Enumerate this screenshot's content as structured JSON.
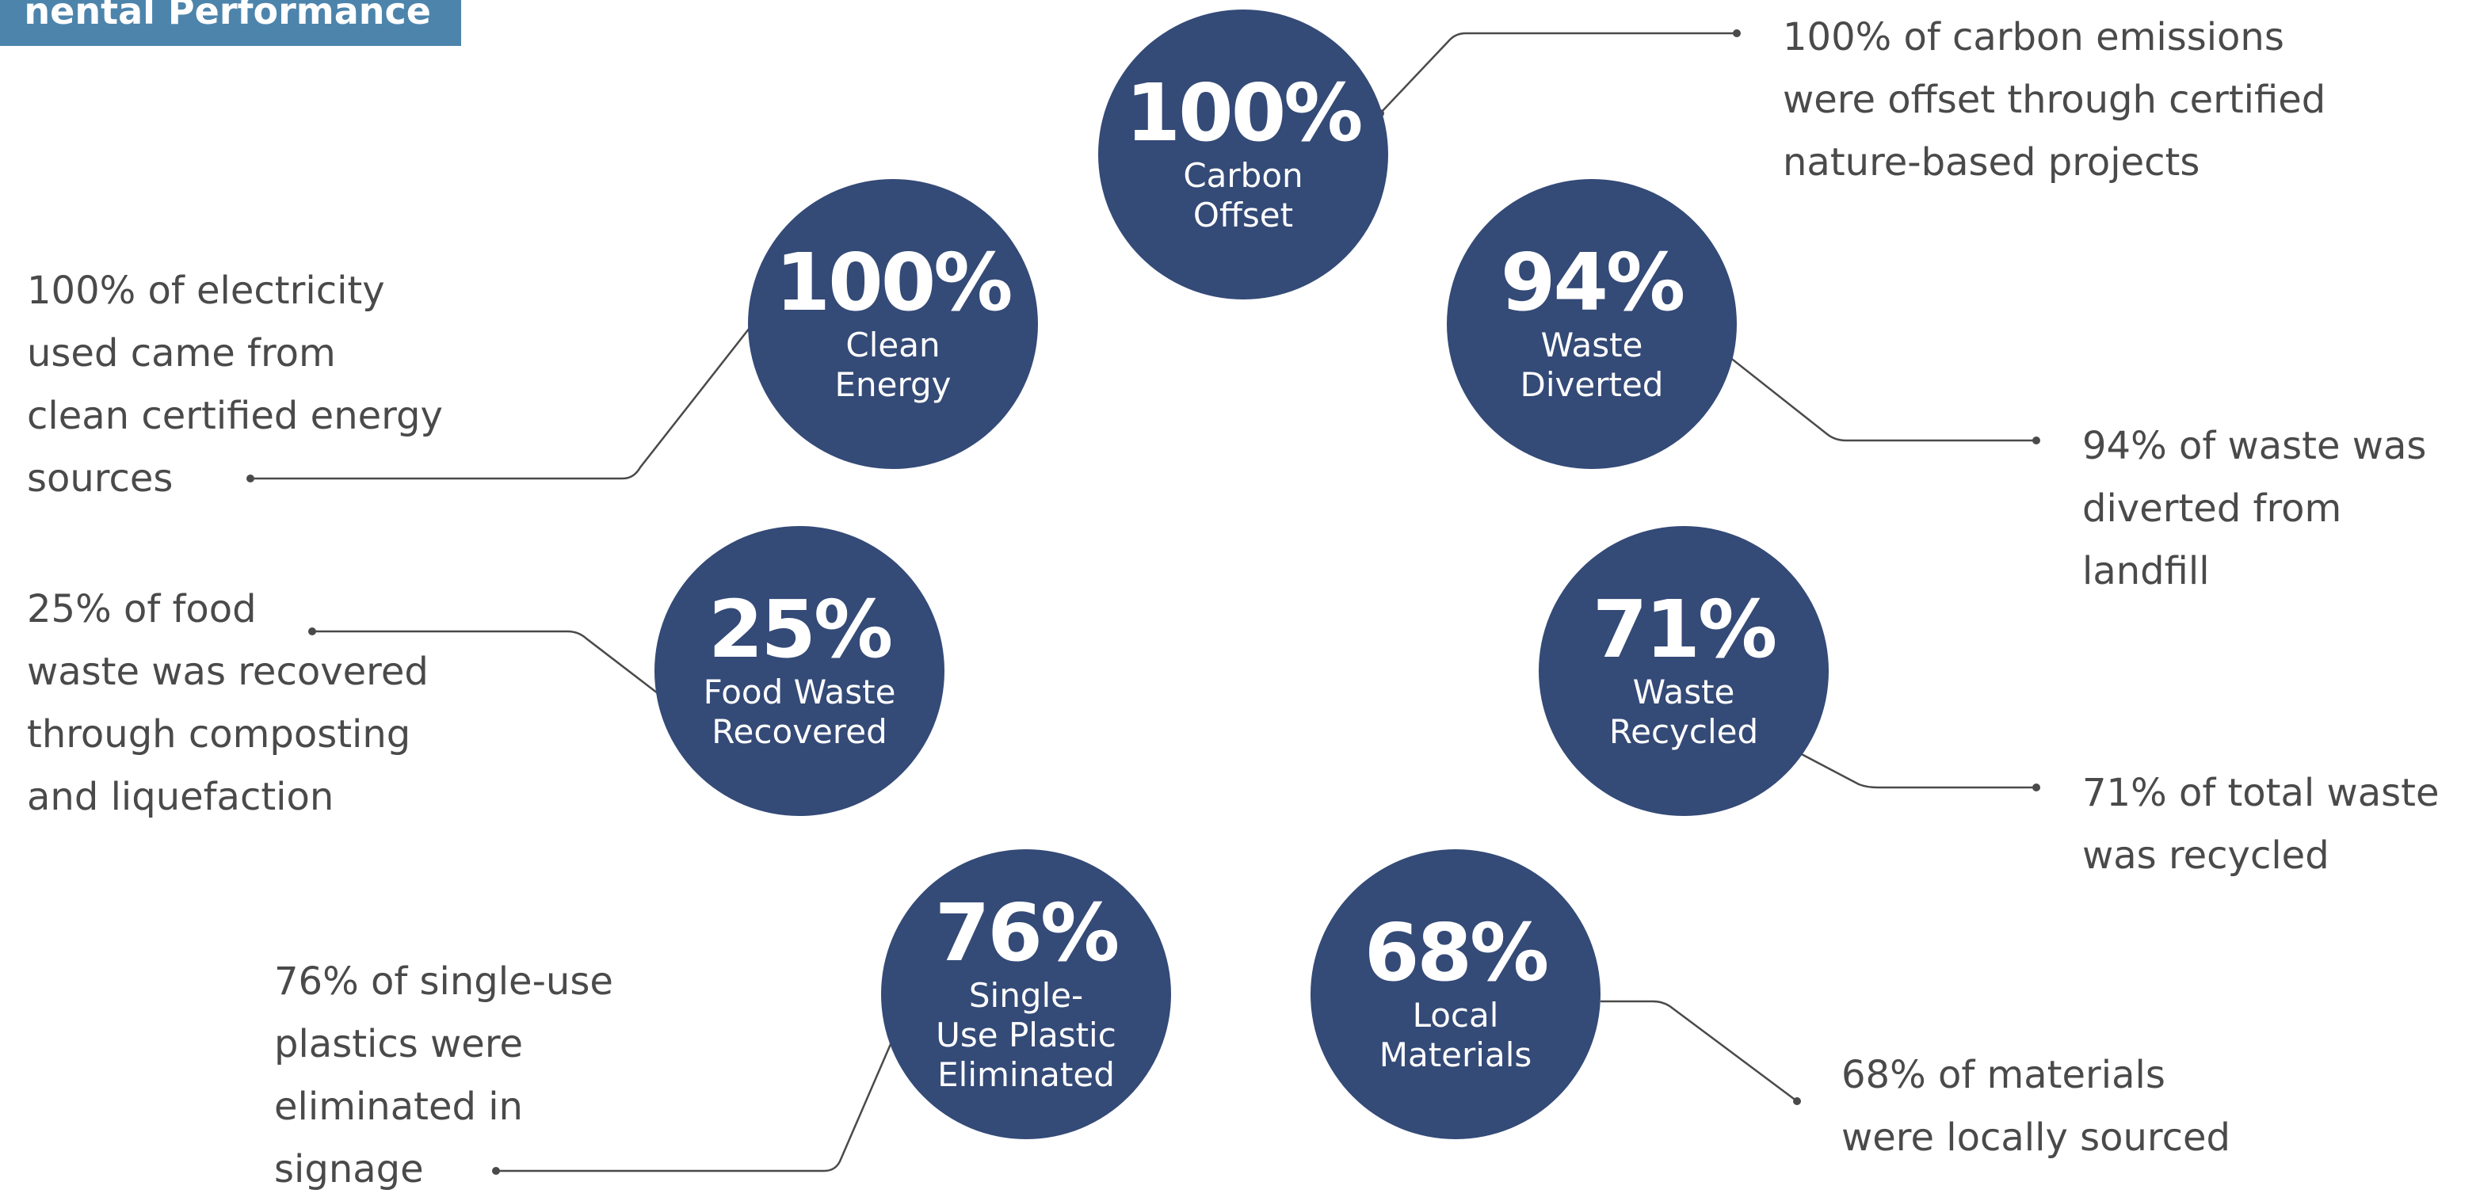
{
  "header": {
    "title": "nental Performance"
  },
  "metrics": [
    {
      "id": "carbon-offset",
      "value": "100%",
      "label": "Carbon Offset",
      "description": "100% of carbon emissions\nwere offset through certified\nnature-based projects"
    },
    {
      "id": "clean-energy",
      "value": "100%",
      "label": "Clean\nEnergy",
      "description": "100% of electricity\nused came from\nclean certified energy\nsources"
    },
    {
      "id": "waste-diverted",
      "value": "94%",
      "label": "Waste\nDiverted",
      "description": "94% of waste was\ndiverted from landfill"
    },
    {
      "id": "food-waste",
      "value": "25%",
      "label": "Food Waste\nRecovered",
      "description": "25% of food\nwaste was recovered\nthrough composting\nand liquefaction"
    },
    {
      "id": "waste-recycled",
      "value": "71%",
      "label": "Waste\nRecycled",
      "description": "71% of total waste\nwas recycled"
    },
    {
      "id": "single-use-plastic",
      "value": "76%",
      "label": "Single-\nUse Plastic\nEliminated",
      "description": "76% of single-use\nplastics were\neliminated in\nsignage"
    },
    {
      "id": "local-materials",
      "value": "68%",
      "label": "Local\nMaterials",
      "description": "68% of materials\nwere locally sourced"
    }
  ],
  "colors": {
    "circle": "#344a77",
    "banner": "#4d84ab",
    "text": "#4a4a4a",
    "connector": "#4a4a4a"
  }
}
